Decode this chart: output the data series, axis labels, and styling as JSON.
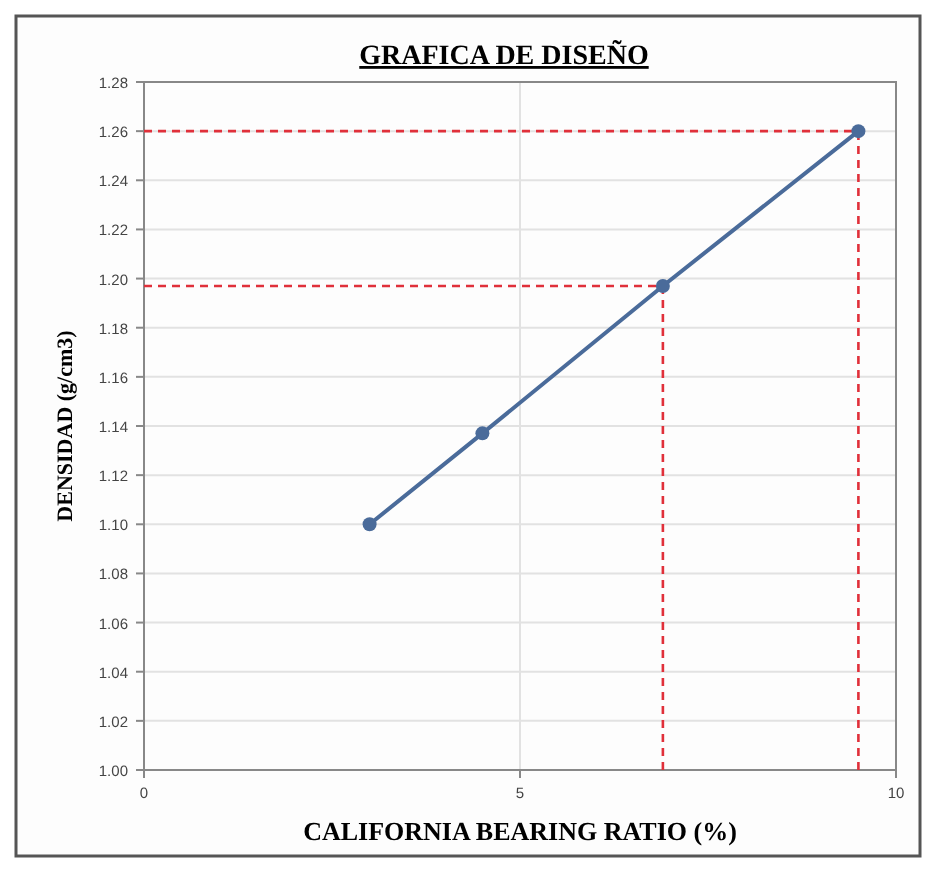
{
  "chart_data": {
    "type": "line",
    "title": "GRAFICA DE DISEÑO",
    "xlabel": "CALIFORNIA BEARING RATIO  (%)",
    "ylabel": "DENSIDAD (g/cm3)",
    "x": [
      3.0,
      4.5,
      6.9,
      9.5
    ],
    "series": [
      {
        "color": "#4a6b9a",
        "values": [
          1.1,
          1.137,
          1.197,
          1.26
        ]
      }
    ],
    "xlim": [
      0,
      10
    ],
    "xticks": [
      0,
      5,
      10
    ],
    "ylim": [
      1.0,
      1.28
    ],
    "yticks": [
      {
        "value": 1.0,
        "label": "1.00"
      },
      {
        "value": 1.02,
        "label": "1.02"
      },
      {
        "value": 1.04,
        "label": "1.04"
      },
      {
        "value": 1.06,
        "label": "1.06"
      },
      {
        "value": 1.08,
        "label": "1.08"
      },
      {
        "value": 1.1,
        "label": "1.10"
      },
      {
        "value": 1.12,
        "label": "1.12"
      },
      {
        "value": 1.14,
        "label": "1.14"
      },
      {
        "value": 1.16,
        "label": "1.16"
      },
      {
        "value": 1.18,
        "label": "1.18"
      },
      {
        "value": 1.2,
        "label": "1.20"
      },
      {
        "value": 1.22,
        "label": "1.22"
      },
      {
        "value": 1.24,
        "label": "1.24"
      },
      {
        "value": 1.26,
        "label": "1.26"
      },
      {
        "value": 1.28,
        "label": "1.28"
      }
    ],
    "ref_lines": [
      {
        "axis": "y",
        "value": 1.26,
        "color": "#e0303a",
        "line_style": "dashed"
      },
      {
        "axis": "y",
        "value": 1.197,
        "color": "#e0303a",
        "line_style": "dashed"
      },
      {
        "axis": "x",
        "value": 6.9,
        "color": "#e0303a",
        "line_style": "dashed"
      },
      {
        "axis": "x",
        "value": 9.5,
        "color": "#e0303a",
        "line_style": "dashed"
      }
    ],
    "grid": true,
    "marker": "circle",
    "line_style": "solid"
  }
}
